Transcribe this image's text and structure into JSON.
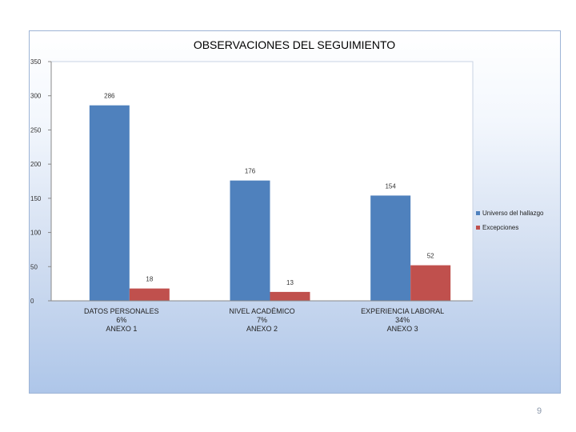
{
  "slide": {
    "page_number": "9"
  },
  "chart_data": {
    "type": "bar",
    "title": "OBSERVACIONES DEL SEGUIMIENTO",
    "xlabel": "",
    "ylabel": "",
    "ylim": [
      0,
      350
    ],
    "yticks": [
      "0",
      "50",
      "100",
      "150",
      "200",
      "250",
      "300",
      "350"
    ],
    "categories": [
      [
        "DATOS PERSONALES",
        "6%",
        "ANEXO 1"
      ],
      [
        "NIVEL ACADÉMICO",
        "7%",
        "ANEXO 2"
      ],
      [
        "EXPERIENCIA LABORAL",
        "34%",
        "ANEXO 3"
      ]
    ],
    "series": [
      {
        "name": "Universo del hallazgo",
        "color": "#4f81bd",
        "values": [
          286,
          176,
          154
        ]
      },
      {
        "name": "Excepciones",
        "color": "#c0504d",
        "values": [
          18,
          13,
          52
        ]
      }
    ],
    "grid": false,
    "legend": "right"
  }
}
